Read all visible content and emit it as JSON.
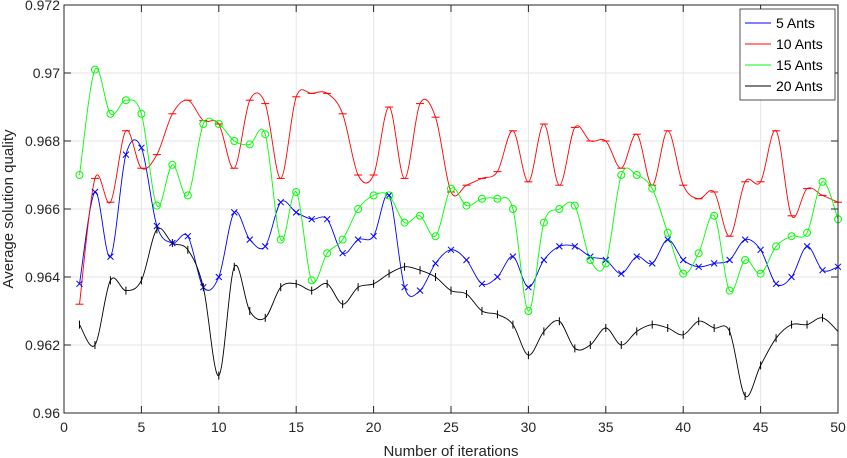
{
  "chart_data": {
    "type": "line",
    "xlabel": "Number of iterations",
    "ylabel": "Average solution quality",
    "xlim": [
      0,
      50
    ],
    "ylim": [
      0.96,
      0.972
    ],
    "x_ticks": [
      0,
      5,
      10,
      15,
      20,
      25,
      30,
      35,
      40,
      45,
      50
    ],
    "y_ticks": [
      0.96,
      0.962,
      0.964,
      0.966,
      0.968,
      0.97,
      0.972
    ],
    "y_tick_labels": [
      "0.96",
      "0.962",
      "0.964",
      "0.966",
      "0.968",
      "0.97",
      "0.972"
    ],
    "grid": true,
    "legend_position": "top-right",
    "x": [
      1,
      2,
      3,
      4,
      5,
      6,
      7,
      8,
      9,
      10,
      11,
      12,
      13,
      14,
      15,
      16,
      17,
      18,
      19,
      20,
      21,
      22,
      23,
      24,
      25,
      26,
      27,
      28,
      29,
      30,
      31,
      32,
      33,
      34,
      35,
      36,
      37,
      38,
      39,
      40,
      41,
      42,
      43,
      44,
      45,
      46,
      47,
      48,
      49,
      50
    ],
    "series": [
      {
        "name": "5 Ants",
        "color": "#0000ff",
        "marker": "x",
        "values": [
          0.9638,
          0.9665,
          0.9646,
          0.9676,
          0.9678,
          0.9655,
          0.965,
          0.9652,
          0.9637,
          0.964,
          0.9659,
          0.9651,
          0.9649,
          0.9662,
          0.9659,
          0.9657,
          0.9657,
          0.9647,
          0.9651,
          0.9652,
          0.9664,
          0.9637,
          0.9636,
          0.9644,
          0.9648,
          0.9645,
          0.9638,
          0.964,
          0.9646,
          0.9637,
          0.9645,
          0.9649,
          0.9649,
          0.9646,
          0.9645,
          0.9641,
          0.9646,
          0.9644,
          0.9651,
          0.9645,
          0.9643,
          0.9644,
          0.9645,
          0.9651,
          0.9648,
          0.9638,
          0.964,
          0.9649,
          0.9642,
          0.9643
        ]
      },
      {
        "name": "10 Ants",
        "color": "#ff0000",
        "marker": "_",
        "values": [
          0.9632,
          0.9669,
          0.9662,
          0.9683,
          0.9672,
          0.9676,
          0.9688,
          0.9692,
          0.9686,
          0.9685,
          0.9672,
          0.9692,
          0.9691,
          0.9669,
          0.9693,
          0.9694,
          0.9694,
          0.9688,
          0.967,
          0.967,
          0.969,
          0.9669,
          0.9691,
          0.9687,
          0.9665,
          0.9667,
          0.9669,
          0.9671,
          0.9683,
          0.9668,
          0.9685,
          0.9667,
          0.9684,
          0.968,
          0.968,
          0.9672,
          0.9682,
          0.9667,
          0.9683,
          0.9667,
          0.9663,
          0.9665,
          0.9652,
          0.9668,
          0.9668,
          0.9683,
          0.9658,
          0.9666,
          0.9664,
          0.9662
        ]
      },
      {
        "name": "15 Ants",
        "color": "#00ff00",
        "marker": "o",
        "values": [
          0.967,
          0.9701,
          0.9688,
          0.9692,
          0.9688,
          0.9661,
          0.9673,
          0.9664,
          0.9685,
          0.9685,
          0.968,
          0.9679,
          0.9682,
          0.9651,
          0.9665,
          0.9639,
          0.9647,
          0.9651,
          0.966,
          0.9664,
          0.9664,
          0.9656,
          0.9658,
          0.9652,
          0.9666,
          0.9661,
          0.9663,
          0.9663,
          0.966,
          0.963,
          0.9656,
          0.966,
          0.9661,
          0.9645,
          0.9644,
          0.967,
          0.967,
          0.9666,
          0.9653,
          0.9641,
          0.9647,
          0.9658,
          0.9636,
          0.9645,
          0.9641,
          0.9649,
          0.9652,
          0.9653,
          0.9668,
          0.9657
        ]
      },
      {
        "name": "20 Ants",
        "color": "#000000",
        "marker": "|",
        "values": [
          0.9626,
          0.962,
          0.9639,
          0.9636,
          0.9639,
          0.9654,
          0.965,
          0.9648,
          0.9637,
          0.9611,
          0.9643,
          0.963,
          0.9628,
          0.9637,
          0.9638,
          0.9636,
          0.9638,
          0.9632,
          0.9637,
          0.9638,
          0.9641,
          0.9643,
          0.9642,
          0.964,
          0.9636,
          0.9635,
          0.963,
          0.9629,
          0.9626,
          0.9617,
          0.9624,
          0.9627,
          0.9619,
          0.962,
          0.9625,
          0.962,
          0.9624,
          0.9626,
          0.9625,
          0.9623,
          0.9627,
          0.9625,
          0.9624,
          0.9605,
          0.9614,
          0.9622,
          0.9626,
          0.9626,
          0.9628,
          0.9624
        ]
      }
    ]
  }
}
